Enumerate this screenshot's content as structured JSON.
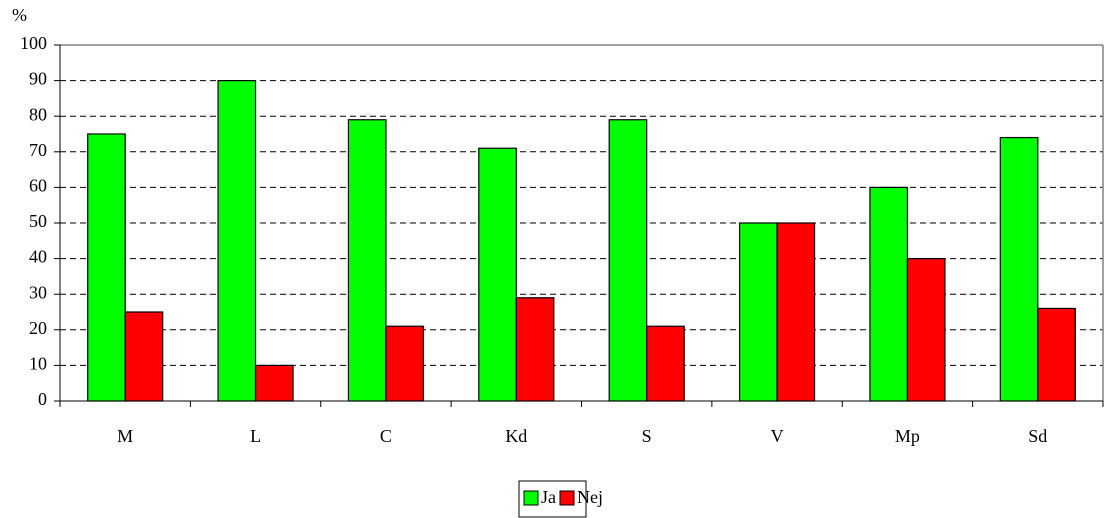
{
  "chart_data": {
    "type": "bar",
    "y_label": "%",
    "categories": [
      "M",
      "L",
      "C",
      "Kd",
      "S",
      "V",
      "Mp",
      "Sd"
    ],
    "series": [
      {
        "name": "Ja",
        "color": "#00ff00",
        "values": [
          75,
          90,
          79,
          71,
          79,
          50,
          60,
          74
        ]
      },
      {
        "name": "Nej",
        "color": "#ff0000",
        "values": [
          25,
          10,
          21,
          29,
          21,
          50,
          40,
          26
        ]
      }
    ],
    "ylim": [
      0,
      100
    ],
    "yticks": [
      0,
      10,
      20,
      30,
      40,
      50,
      60,
      70,
      80,
      90,
      100
    ],
    "grid": true,
    "legend": "bottom"
  }
}
